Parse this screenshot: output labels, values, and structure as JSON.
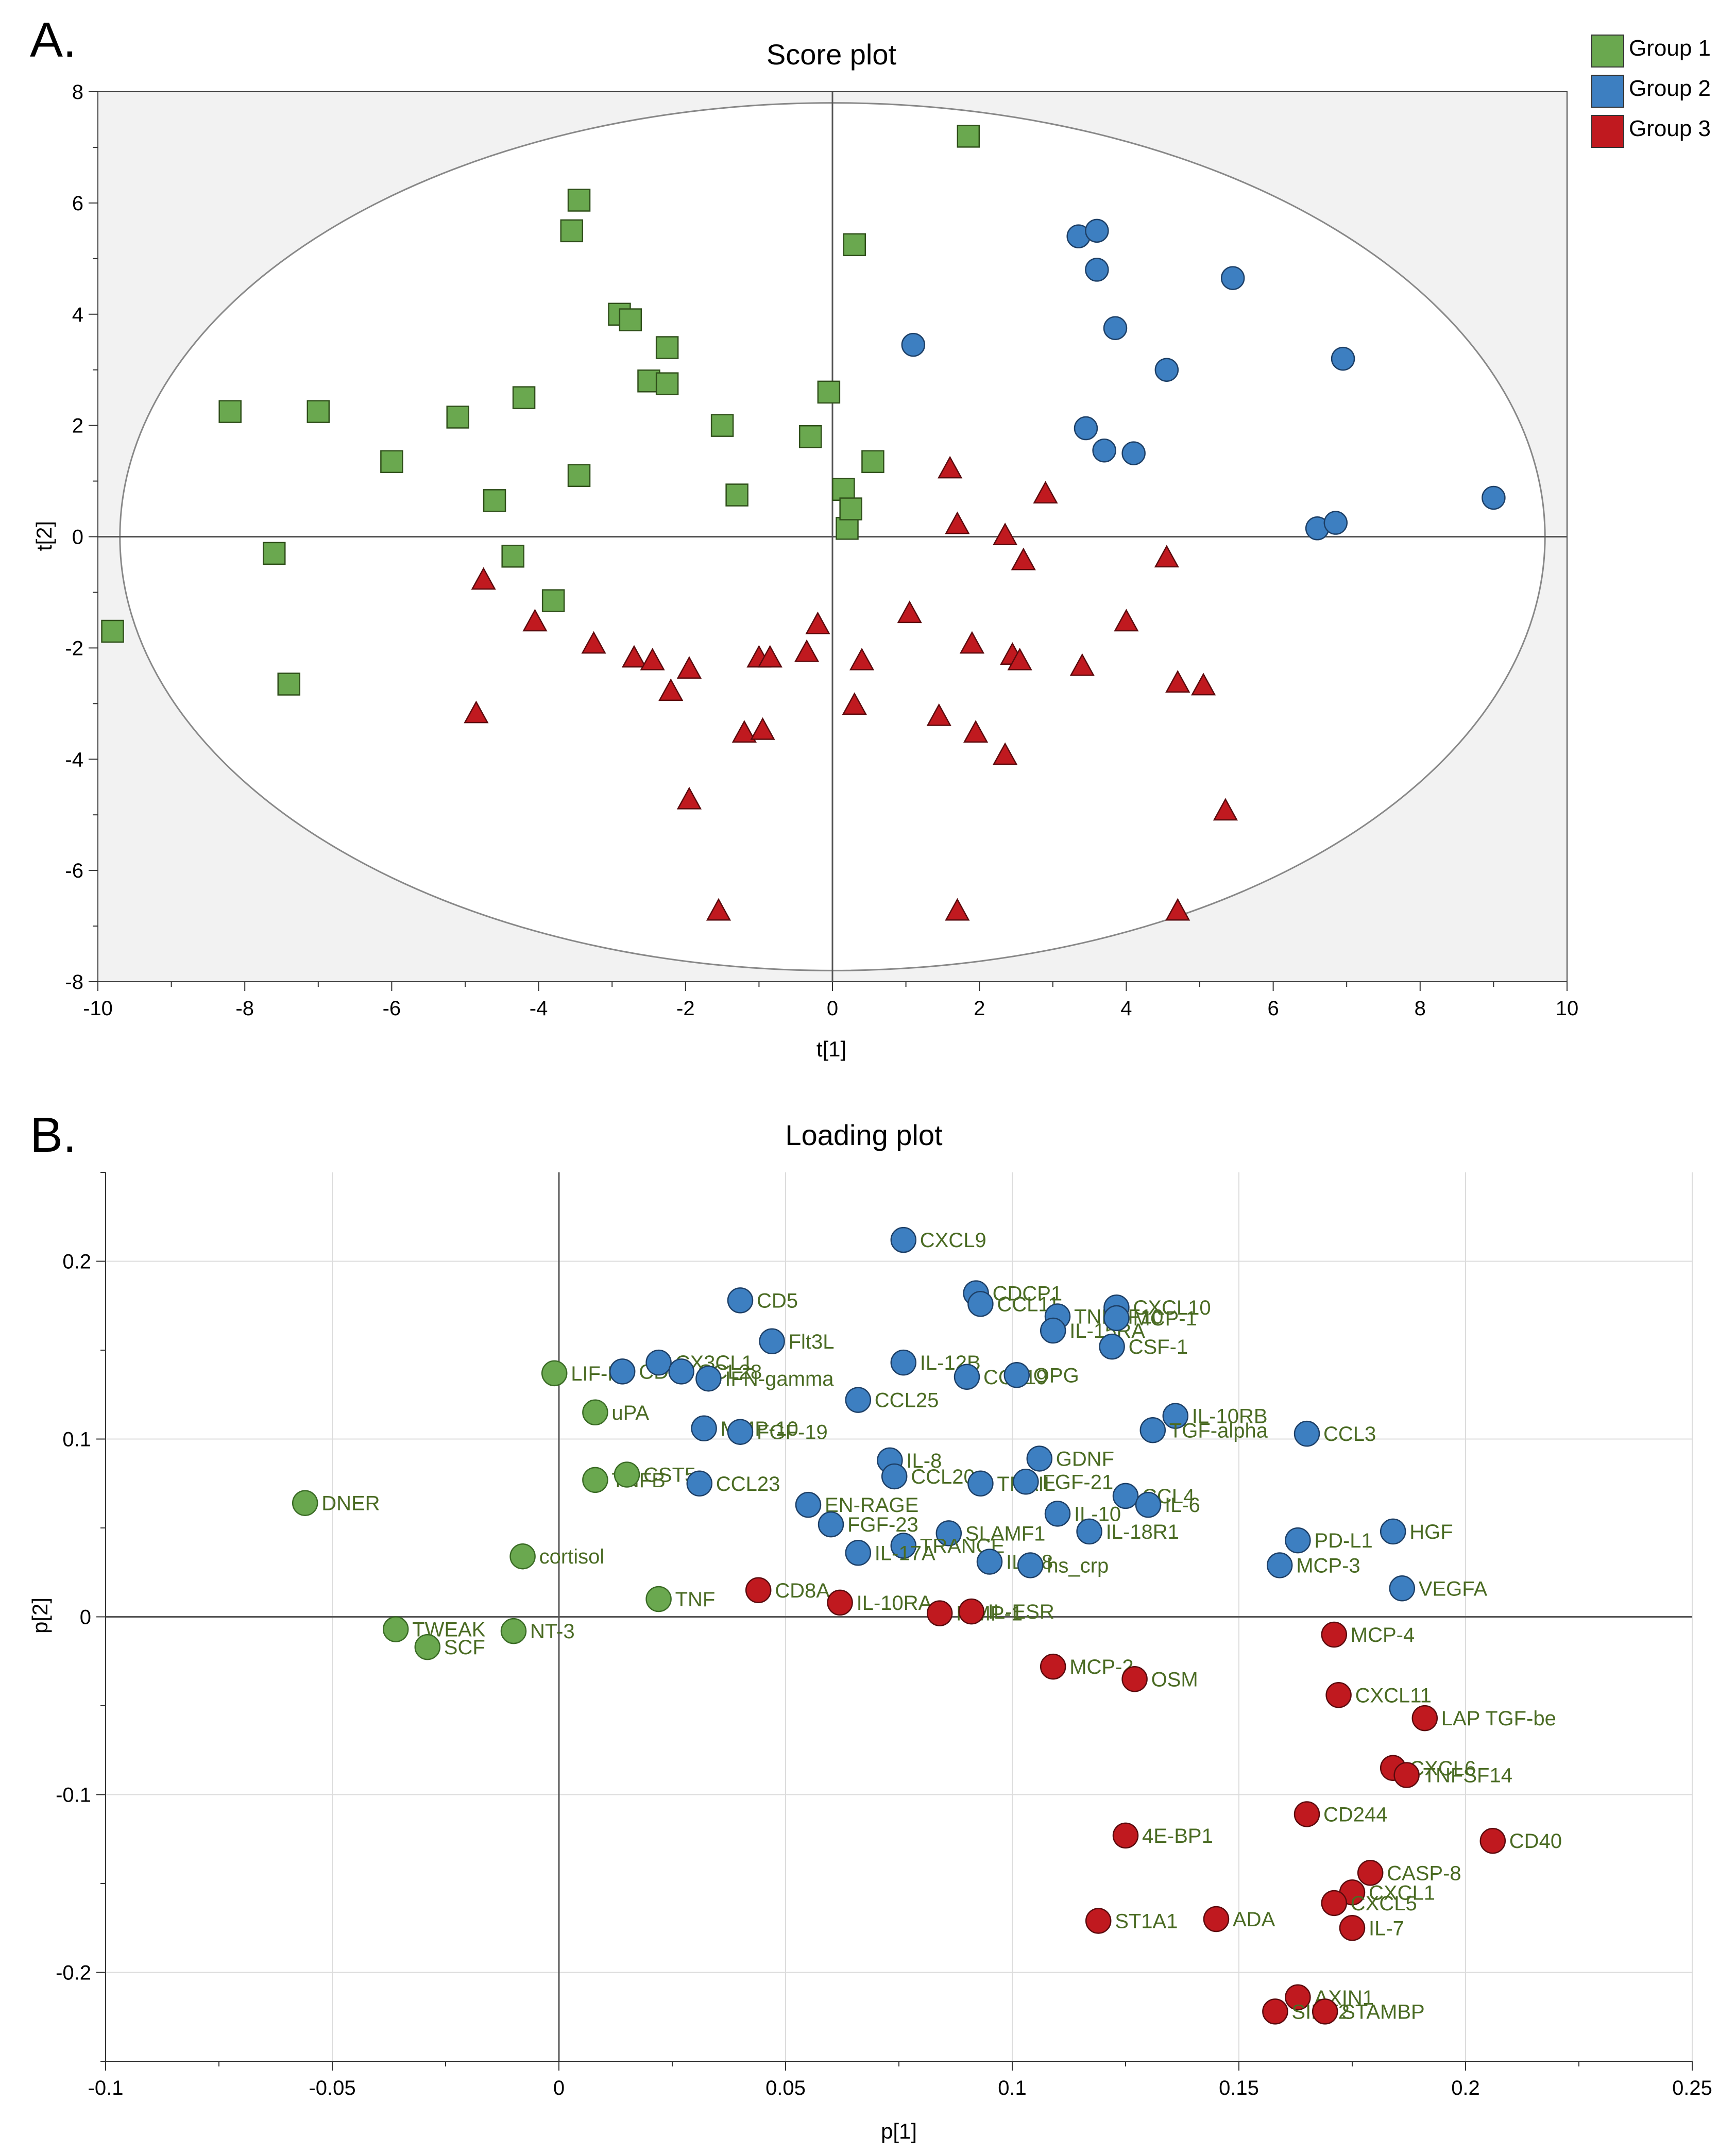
{
  "colors": {
    "group1": "#6aa84f",
    "group2": "#3d7fc1",
    "group3": "#c0191f",
    "loading_label": "#4a6b23",
    "ellipse_fill": "#ffffff",
    "plot_bg": "#f2f2f2"
  },
  "chart_data": [
    {
      "type": "scatter",
      "panel_label": "A.",
      "title": "Score plot",
      "xlabel": "t[1]",
      "ylabel": "t[2]",
      "xlim": [
        -10,
        10
      ],
      "ylim": [
        -8,
        8
      ],
      "xticks": [
        -10,
        -8,
        -6,
        -4,
        -2,
        0,
        2,
        4,
        6,
        8,
        10
      ],
      "yticks": [
        -8,
        -6,
        -4,
        -2,
        0,
        2,
        4,
        6,
        8
      ],
      "ellipse": {
        "rx": 9.7,
        "ry": 7.8
      },
      "legend": [
        {
          "label": "Group 1",
          "color": "#6aa84f"
        },
        {
          "label": "Group 2",
          "color": "#3d7fc1"
        },
        {
          "label": "Group 3",
          "color": "#c0191f"
        }
      ],
      "series": [
        {
          "name": "Group 1",
          "marker": "square",
          "color": "#6aa84f",
          "points": [
            [
              -9.8,
              -1.7
            ],
            [
              -8.2,
              2.25
            ],
            [
              -7.6,
              -0.3
            ],
            [
              -7.4,
              -2.65
            ],
            [
              -7.0,
              2.25
            ],
            [
              -6.0,
              1.35
            ],
            [
              -5.1,
              2.15
            ],
            [
              -4.6,
              0.65
            ],
            [
              -4.35,
              -0.35
            ],
            [
              -4.2,
              2.5
            ],
            [
              -3.8,
              -1.15
            ],
            [
              -3.55,
              5.5
            ],
            [
              -3.45,
              6.05
            ],
            [
              -3.45,
              1.1
            ],
            [
              -2.9,
              4.0
            ],
            [
              -2.75,
              3.9
            ],
            [
              -2.5,
              2.8
            ],
            [
              -2.25,
              2.75
            ],
            [
              -2.25,
              3.4
            ],
            [
              -1.5,
              2.0
            ],
            [
              -1.3,
              0.75
            ],
            [
              -0.3,
              1.8
            ],
            [
              -0.05,
              2.6
            ],
            [
              0.15,
              0.85
            ],
            [
              0.2,
              0.15
            ],
            [
              0.25,
              0.5
            ],
            [
              0.3,
              5.25
            ],
            [
              0.55,
              1.35
            ],
            [
              1.85,
              7.2
            ]
          ]
        },
        {
          "name": "Group 2",
          "marker": "circle",
          "color": "#3d7fc1",
          "points": [
            [
              1.1,
              3.45
            ],
            [
              3.35,
              5.4
            ],
            [
              3.45,
              1.95
            ],
            [
              3.6,
              5.5
            ],
            [
              3.6,
              4.8
            ],
            [
              3.7,
              1.55
            ],
            [
              3.85,
              3.75
            ],
            [
              4.1,
              1.5
            ],
            [
              4.55,
              3.0
            ],
            [
              5.45,
              4.65
            ],
            [
              6.6,
              0.15
            ],
            [
              6.85,
              0.25
            ],
            [
              6.95,
              3.2
            ],
            [
              9.0,
              0.7
            ]
          ]
        },
        {
          "name": "Group 3",
          "marker": "triangle",
          "color": "#c0191f",
          "points": [
            [
              -4.85,
              -3.2
            ],
            [
              -4.75,
              -0.8
            ],
            [
              -4.05,
              -1.55
            ],
            [
              -3.25,
              -1.95
            ],
            [
              -2.7,
              -2.2
            ],
            [
              -2.45,
              -2.25
            ],
            [
              -2.2,
              -2.8
            ],
            [
              -1.95,
              -2.4
            ],
            [
              -1.95,
              -4.75
            ],
            [
              -1.55,
              -6.75
            ],
            [
              -1.2,
              -3.55
            ],
            [
              -1.0,
              -2.2
            ],
            [
              -0.95,
              -3.5
            ],
            [
              -0.85,
              -2.2
            ],
            [
              -0.35,
              -2.1
            ],
            [
              -0.2,
              -1.6
            ],
            [
              0.3,
              -3.05
            ],
            [
              0.4,
              -2.25
            ],
            [
              1.05,
              -1.4
            ],
            [
              1.45,
              -3.25
            ],
            [
              1.6,
              1.2
            ],
            [
              1.7,
              0.2
            ],
            [
              1.7,
              -6.75
            ],
            [
              1.9,
              -1.95
            ],
            [
              1.95,
              -3.55
            ],
            [
              2.35,
              -3.95
            ],
            [
              2.35,
              0.0
            ],
            [
              2.45,
              -2.15
            ],
            [
              2.55,
              -2.25
            ],
            [
              2.6,
              -0.45
            ],
            [
              2.9,
              0.75
            ],
            [
              3.4,
              -2.35
            ],
            [
              4.0,
              -1.55
            ],
            [
              4.55,
              -0.4
            ],
            [
              4.7,
              -2.65
            ],
            [
              4.7,
              -6.75
            ],
            [
              5.05,
              -2.7
            ],
            [
              5.35,
              -4.95
            ]
          ]
        }
      ]
    },
    {
      "type": "scatter",
      "panel_label": "B.",
      "title": "Loading plot",
      "xlabel": "p[1]",
      "ylabel": "p[2]",
      "xlim": [
        -0.1,
        0.25
      ],
      "ylim": [
        -0.25,
        0.25
      ],
      "xticks": [
        -0.1,
        -0.05,
        0,
        0.05,
        0.1,
        0.15,
        0.2,
        0.25
      ],
      "xtick_labels": [
        "-0.1",
        "-0.05",
        "0",
        "0.05",
        "0.1",
        "0.15",
        "0.2",
        "0.25"
      ],
      "yticks": [
        -0.2,
        -0.1,
        0,
        0.1,
        0.2
      ],
      "ytick_labels": [
        "-0.2",
        "-0.1",
        "0",
        "0.1",
        "0.2"
      ],
      "series": [
        {
          "name": "Group 1",
          "color": "#6aa84f",
          "points": [
            {
              "label": "DNER",
              "x": -0.056,
              "y": 0.064
            },
            {
              "label": "TWEAK",
              "x": -0.036,
              "y": -0.007
            },
            {
              "label": "SCF",
              "x": -0.029,
              "y": -0.017
            },
            {
              "label": "NT-3",
              "x": -0.01,
              "y": -0.008
            },
            {
              "label": "cortisol",
              "x": -0.008,
              "y": 0.034
            },
            {
              "label": "LIF-R",
              "x": -0.001,
              "y": 0.137
            },
            {
              "label": "uPA",
              "x": 0.008,
              "y": 0.115
            },
            {
              "label": "TNFB",
              "x": 0.008,
              "y": 0.077
            },
            {
              "label": "CST5",
              "x": 0.015,
              "y": 0.08
            },
            {
              "label": "TNF",
              "x": 0.022,
              "y": 0.01
            }
          ]
        },
        {
          "name": "Group 2",
          "color": "#3d7fc1",
          "points": [
            {
              "label": "CXCL9",
              "x": 0.076,
              "y": 0.212
            },
            {
              "label": "CD5",
              "x": 0.04,
              "y": 0.178
            },
            {
              "label": "Flt3L",
              "x": 0.047,
              "y": 0.155
            },
            {
              "label": "CD6",
              "x": 0.014,
              "y": 0.138
            },
            {
              "label": "CX3CL1",
              "x": 0.022,
              "y": 0.143
            },
            {
              "label": "CCL28",
              "x": 0.027,
              "y": 0.138
            },
            {
              "label": "IFN-gamma",
              "x": 0.033,
              "y": 0.134
            },
            {
              "label": "MMP-10",
              "x": 0.032,
              "y": 0.106
            },
            {
              "label": "FGF-19",
              "x": 0.04,
              "y": 0.104
            },
            {
              "label": "CCL23",
              "x": 0.031,
              "y": 0.075
            },
            {
              "label": "CCL25",
              "x": 0.066,
              "y": 0.122
            },
            {
              "label": "IL-12B",
              "x": 0.076,
              "y": 0.143
            },
            {
              "label": "CDCP1",
              "x": 0.092,
              "y": 0.182
            },
            {
              "label": "CCL11",
              "x": 0.093,
              "y": 0.176
            },
            {
              "label": "TNFSF10",
              "x": 0.11,
              "y": 0.169
            },
            {
              "label": "IL-15RA",
              "x": 0.109,
              "y": 0.161
            },
            {
              "label": "CXCL10",
              "x": 0.123,
              "y": 0.174
            },
            {
              "label": "MCP-1",
              "x": 0.123,
              "y": 0.168
            },
            {
              "label": "CSF-1",
              "x": 0.122,
              "y": 0.152
            },
            {
              "label": "CCL19",
              "x": 0.09,
              "y": 0.135
            },
            {
              "label": "OPG",
              "x": 0.101,
              "y": 0.136
            },
            {
              "label": "IL-10RB",
              "x": 0.136,
              "y": 0.113
            },
            {
              "label": "TGF-alpha",
              "x": 0.131,
              "y": 0.105
            },
            {
              "label": "CCL3",
              "x": 0.165,
              "y": 0.103
            },
            {
              "label": "IL-8",
              "x": 0.073,
              "y": 0.088
            },
            {
              "label": "CCL20",
              "x": 0.074,
              "y": 0.079
            },
            {
              "label": "GDNF",
              "x": 0.106,
              "y": 0.089
            },
            {
              "label": "TRAIL",
              "x": 0.093,
              "y": 0.075
            },
            {
              "label": "FGF-21",
              "x": 0.103,
              "y": 0.076
            },
            {
              "label": "CCL4",
              "x": 0.125,
              "y": 0.068
            },
            {
              "label": "IL-6",
              "x": 0.13,
              "y": 0.063
            },
            {
              "label": "IL-10",
              "x": 0.11,
              "y": 0.058
            },
            {
              "label": "IL-18R1",
              "x": 0.117,
              "y": 0.048
            },
            {
              "label": "EN-RAGE",
              "x": 0.055,
              "y": 0.063
            },
            {
              "label": "FGF-23",
              "x": 0.06,
              "y": 0.052
            },
            {
              "label": "SLAMF1",
              "x": 0.086,
              "y": 0.047
            },
            {
              "label": "TRANCE",
              "x": 0.076,
              "y": 0.04
            },
            {
              "label": "IL-17A",
              "x": 0.066,
              "y": 0.036
            },
            {
              "label": "IL-18",
              "x": 0.095,
              "y": 0.031
            },
            {
              "label": "hs_crp",
              "x": 0.104,
              "y": 0.029
            },
            {
              "label": "PD-L1",
              "x": 0.163,
              "y": 0.043
            },
            {
              "label": "HGF",
              "x": 0.184,
              "y": 0.048
            },
            {
              "label": "MCP-3",
              "x": 0.159,
              "y": 0.029
            },
            {
              "label": "VEGFA",
              "x": 0.186,
              "y": 0.016
            }
          ]
        },
        {
          "name": "Group 3",
          "color": "#c0191f",
          "points": [
            {
              "label": "CD8A",
              "x": 0.044,
              "y": 0.015
            },
            {
              "label": "IL-10RA",
              "x": 0.062,
              "y": 0.008
            },
            {
              "label": "MMP-1",
              "x": 0.084,
              "y": 0.002
            },
            {
              "label": "IL-ESR",
              "x": 0.091,
              "y": 0.003
            },
            {
              "label": "MCP-4",
              "x": 0.171,
              "y": -0.01
            },
            {
              "label": "MCP-2",
              "x": 0.109,
              "y": -0.028
            },
            {
              "label": "OSM",
              "x": 0.127,
              "y": -0.035
            },
            {
              "label": "CXCL11",
              "x": 0.172,
              "y": -0.044
            },
            {
              "label": "LAP TGF-be",
              "x": 0.191,
              "y": -0.057
            },
            {
              "label": "CXCL6",
              "x": 0.184,
              "y": -0.085
            },
            {
              "label": "TNFSF14",
              "x": 0.187,
              "y": -0.089
            },
            {
              "label": "CD244",
              "x": 0.165,
              "y": -0.111
            },
            {
              "label": "CD40",
              "x": 0.206,
              "y": -0.126
            },
            {
              "label": "4E-BP1",
              "x": 0.125,
              "y": -0.123
            },
            {
              "label": "CASP-8",
              "x": 0.179,
              "y": -0.144
            },
            {
              "label": "CXCL1",
              "x": 0.175,
              "y": -0.155
            },
            {
              "label": "CXCL5",
              "x": 0.171,
              "y": -0.161
            },
            {
              "label": "IL-7",
              "x": 0.175,
              "y": -0.175
            },
            {
              "label": "ADA",
              "x": 0.145,
              "y": -0.17
            },
            {
              "label": "ST1A1",
              "x": 0.119,
              "y": -0.171
            },
            {
              "label": "AXIN1",
              "x": 0.163,
              "y": -0.214
            },
            {
              "label": "SIRT2",
              "x": 0.158,
              "y": -0.222
            },
            {
              "label": "STAMBP",
              "x": 0.169,
              "y": -0.222
            }
          ]
        }
      ]
    }
  ]
}
